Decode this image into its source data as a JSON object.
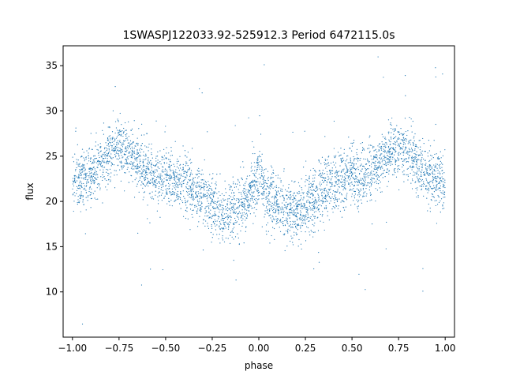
{
  "chart_data": {
    "type": "scatter",
    "title": "1SWASPJ122033.92-525912.3 Period 6472115.0s",
    "xlabel": "phase",
    "ylabel": "flux",
    "xlim": [
      -1.05,
      1.05
    ],
    "ylim": [
      5.0,
      37.2
    ],
    "x_ticks": [
      -1.0,
      -0.75,
      -0.5,
      -0.25,
      0.0,
      0.25,
      0.5,
      0.75,
      1.0
    ],
    "x_tick_labels": [
      "−1.00",
      "−0.75",
      "−0.50",
      "−0.25",
      "0.00",
      "0.25",
      "0.50",
      "0.75",
      "1.00"
    ],
    "y_ticks": [
      10,
      15,
      20,
      25,
      30,
      35
    ],
    "y_tick_labels": [
      "10",
      "15",
      "20",
      "25",
      "30",
      "35"
    ],
    "grid": false,
    "legend": "none",
    "marker_color": "#1f77b4",
    "trend_x": [
      0.0,
      0.05,
      0.1,
      0.15,
      0.2,
      0.25,
      0.3,
      0.35,
      0.4,
      0.45,
      0.5,
      0.55,
      0.6,
      0.65,
      0.7,
      0.75,
      0.8,
      0.85,
      0.9,
      0.95,
      1.0
    ],
    "trend_y": [
      22.5,
      20.5,
      19.5,
      19.0,
      18.5,
      19.5,
      20.5,
      21.5,
      22.0,
      22.5,
      23.0,
      22.5,
      23.5,
      24.0,
      25.5,
      26.0,
      25.5,
      24.0,
      23.0,
      22.5,
      22.0
    ],
    "scatter_sd": 1.6,
    "n_points": 4200,
    "random_seed": 7
  }
}
